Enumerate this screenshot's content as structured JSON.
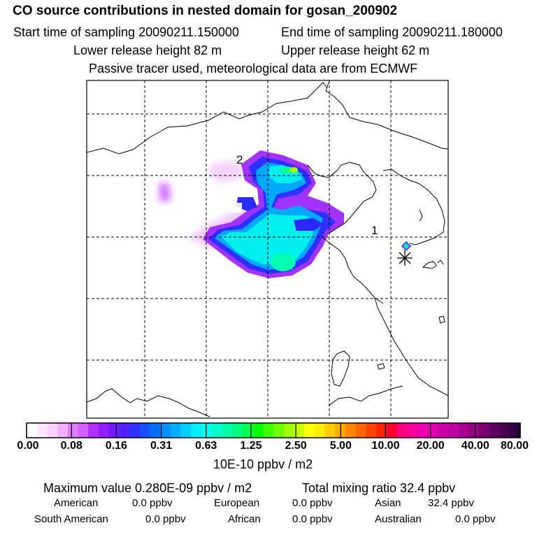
{
  "header": {
    "title": "CO  source contributions in nested domain for gosan_200902",
    "start_time": "Start time of sampling 20090211.150000",
    "end_time": "End time of sampling 20090211.180000",
    "lower_release": "Lower release height   82 m",
    "upper_release": "Upper release height   62 m",
    "info": "Passive tracer used, meteorological data are from ECMWF"
  },
  "chart_data": {
    "type": "heatmap",
    "title": "CO  source contributions in nested domain for gosan_200902",
    "colorbar": {
      "tick_labels": [
        "0.00",
        "0.08",
        "0.16",
        "0.31",
        "0.63",
        "1.25",
        "2.50",
        "5.00",
        "10.00",
        "20.00",
        "40.00",
        "80.00"
      ],
      "unit": "10E-10 ppbv / m2",
      "colors": [
        "#ffffff",
        "#ffe8ff",
        "#ffcfff",
        "#f0b0ff",
        "#e080ff",
        "#d060ff",
        "#b030ff",
        "#9020ff",
        "#7018ff",
        "#5020ff",
        "#3030ff",
        "#1850ff",
        "#0070ff",
        "#0090ff",
        "#00b0ff",
        "#00d0ff",
        "#00f0ff",
        "#00ffee",
        "#00ffcc",
        "#00ffaa",
        "#00ff80",
        "#00ff50",
        "#00ff00",
        "#40ff00",
        "#70ff00",
        "#a0ff00",
        "#c8ff00",
        "#ffff00",
        "#ffee00",
        "#ffcc00",
        "#ffaa00",
        "#ff8800",
        "#ff6600",
        "#ff4400",
        "#ff2200",
        "#ff0030",
        "#ff0080",
        "#ff00a0",
        "#f000b0",
        "#e000b0",
        "#d000a8",
        "#c000a0",
        "#a80090",
        "#900080",
        "#780070",
        "#600060",
        "#480050",
        "#300040"
      ]
    },
    "grid": true,
    "markers": [
      "1",
      "2"
    ],
    "max_value": "Maximum value  0.280E-09 ppbv / m2",
    "total_mixing_ratio": "Total mixing ratio      32.4 ppbv"
  },
  "regions": [
    {
      "name": "American",
      "value": "0.0 ppbv"
    },
    {
      "name": "European",
      "value": "0.0 ppbv"
    },
    {
      "name": "Asian",
      "value": "32.4 ppbv"
    },
    {
      "name": "South American",
      "value": "0.0 ppbv"
    },
    {
      "name": "African",
      "value": "0.0 ppbv"
    },
    {
      "name": "Australian",
      "value": "0.0 ppbv"
    }
  ]
}
